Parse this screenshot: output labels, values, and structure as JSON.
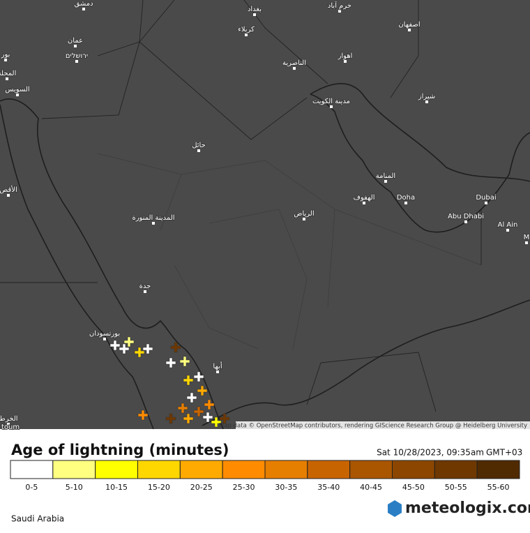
{
  "map": {
    "labels": [
      "دمشق",
      "بغداد",
      "خرم آباد",
      "اصفهان",
      "كربلاء",
      "عمان",
      "ירושלים",
      "بور",
      "المحلة",
      "اهواز",
      "الناصرية",
      "السويس",
      "مدينة الكويت",
      "شيراز",
      "حائل",
      "المنامة",
      "الأقص",
      "الهفوف",
      "Doha",
      "Dubai",
      "الرياض",
      "المدينة المنورة",
      "Abu Dhabi",
      "Al Ain",
      "M",
      "جدة",
      "بورتسودان",
      "أبها",
      "الخرط",
      "toum"
    ],
    "attribution": "Map data © OpenStreetMap contributors, rendering GIScience Research Group @ Heidelberg University"
  },
  "legend": {
    "title": "Age of lightning (minutes)",
    "bins": [
      {
        "label": "0-5",
        "color": "#ffffff"
      },
      {
        "label": "5-10",
        "color": "#ffff80"
      },
      {
        "label": "10-15",
        "color": "#ffff00"
      },
      {
        "label": "15-20",
        "color": "#ffd700"
      },
      {
        "label": "20-25",
        "color": "#ffaa00"
      },
      {
        "label": "25-30",
        "color": "#ff8c00"
      },
      {
        "label": "30-35",
        "color": "#e67e00"
      },
      {
        "label": "35-40",
        "color": "#c86400"
      },
      {
        "label": "40-45",
        "color": "#aa5500"
      },
      {
        "label": "45-50",
        "color": "#8c4600"
      },
      {
        "label": "50-55",
        "color": "#6e3800"
      },
      {
        "label": "55-60",
        "color": "#502a00"
      }
    ]
  },
  "timestamp": "Sat 10/28/2023, 09:35am",
  "timezone": "GMT+03",
  "region": "Saudi Arabia",
  "brand": "meteologix.com"
}
